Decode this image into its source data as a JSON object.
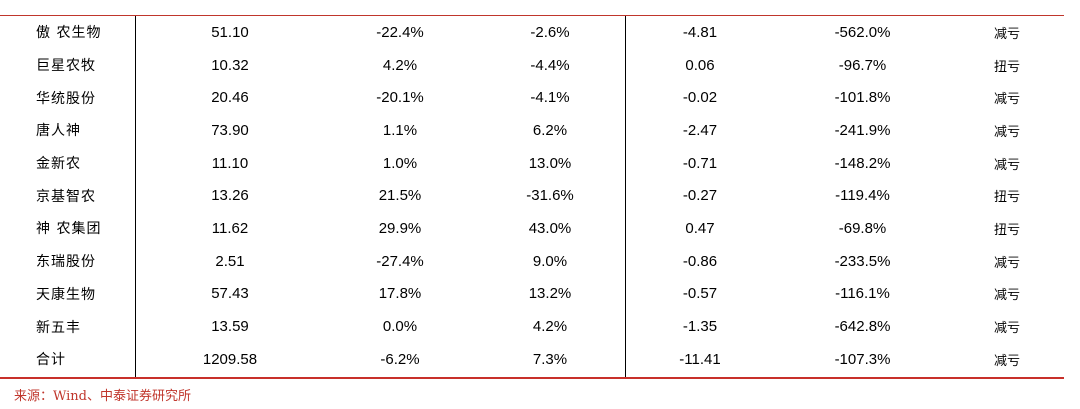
{
  "table": {
    "rows": [
      [
        "傲 农生物",
        "51.10",
        "-22.4%",
        "-2.6%",
        "-4.81",
        "-562.0%",
        "减亏"
      ],
      [
        "巨星农牧",
        "10.32",
        "4.2%",
        "-4.4%",
        "0.06",
        "-96.7%",
        "扭亏"
      ],
      [
        "华统股份",
        "20.46",
        "-20.1%",
        "-4.1%",
        "-0.02",
        "-101.8%",
        "减亏"
      ],
      [
        "唐人神",
        "73.90",
        "1.1%",
        "6.2%",
        "-2.47",
        "-241.9%",
        "减亏"
      ],
      [
        "金新农",
        "11.10",
        "1.0%",
        "13.0%",
        "-0.71",
        "-148.2%",
        "减亏"
      ],
      [
        "京基智农",
        "13.26",
        "21.5%",
        "-31.6%",
        "-0.27",
        "-119.4%",
        "扭亏"
      ],
      [
        "神 农集团",
        "11.62",
        "29.9%",
        "43.0%",
        "0.47",
        "-69.8%",
        "扭亏"
      ],
      [
        "东瑞股份",
        "2.51",
        "-27.4%",
        "9.0%",
        "-0.86",
        "-233.5%",
        "减亏"
      ],
      [
        "天康生物",
        "57.43",
        "17.8%",
        "13.2%",
        "-0.57",
        "-116.1%",
        "减亏"
      ],
      [
        "新五丰",
        "13.59",
        "0.0%",
        "4.2%",
        "-1.35",
        "-642.8%",
        "减亏"
      ],
      [
        "合计",
        "1209.58",
        "-6.2%",
        "7.3%",
        "-11.41",
        "-107.3%",
        "减亏"
      ]
    ]
  },
  "footer": {
    "source_text": "来源：Wind、中泰证券研究所"
  },
  "colors": {
    "accent_red": "#c0362c"
  }
}
